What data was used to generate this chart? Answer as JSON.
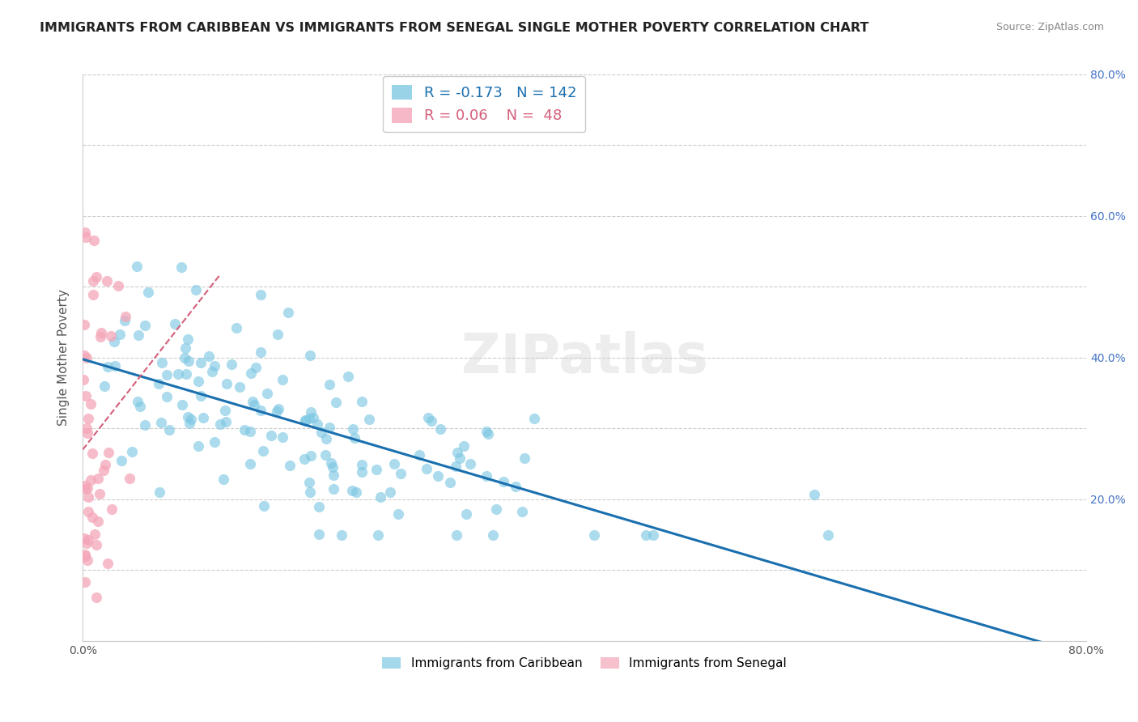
{
  "title": "IMMIGRANTS FROM CARIBBEAN VS IMMIGRANTS FROM SENEGAL SINGLE MOTHER POVERTY CORRELATION CHART",
  "source": "Source: ZipAtlas.com",
  "ylabel": "Single Mother Poverty",
  "xlim": [
    0,
    0.8
  ],
  "ylim": [
    0,
    0.8
  ],
  "caribbean_color": "#7ec8e3",
  "senegal_color": "#f4a6b8",
  "caribbean_line_color": "#1a6faf",
  "senegal_line_color": "#d45f7a",
  "R_caribbean": -0.173,
  "N_caribbean": 142,
  "R_senegal": 0.06,
  "N_senegal": 48,
  "watermark": "ZIPatlas",
  "legend_label_caribbean": "Immigrants from Caribbean",
  "legend_label_senegal": "Immigrants from Senegal"
}
